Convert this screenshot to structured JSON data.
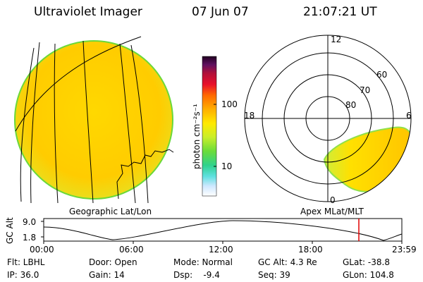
{
  "header": {
    "instrument": "Ultraviolet Imager",
    "date": "07 Jun 07",
    "time": "21:07:21 UT"
  },
  "colorbar": {
    "unit_label": "photon cm⁻²s⁻¹",
    "tick_100": "100",
    "tick_10": "10",
    "colors": [
      "#ffffff",
      "#cfe8ff",
      "#5fe0e0",
      "#2fd28c",
      "#6adc3a",
      "#c8ee2a",
      "#ffea00",
      "#ffb000",
      "#ff6a00",
      "#e8102a",
      "#b0103a",
      "#601060",
      "#200020"
    ]
  },
  "left_panel": {
    "caption": "Geographic Lat/Lon",
    "disk_color": "#ffd400"
  },
  "right_panel": {
    "caption": "Apex MLat/MLT",
    "mlt_12": "12",
    "mlt_18": "18",
    "mlt_6": "6",
    "mlt_0": "0",
    "lat_60": "60",
    "lat_70": "70",
    "lat_80": "80"
  },
  "altitude_strip": {
    "ylabel": "GC Alt",
    "ytick_top": "9.0",
    "ytick_bottom": "1.8",
    "x_ticks": [
      "00:00",
      "06:00",
      "12:00",
      "18:00",
      "23:59"
    ],
    "current_time_marker": "21:07",
    "marker_color": "#e00000"
  },
  "footer": {
    "flt": "Flt: LBHL",
    "ip": "IP: 36.0",
    "door": "Door: Open",
    "gain": "Gain: 14",
    "mode": "Mode: Normal",
    "dsp": "Dsp:    -9.4",
    "gcalt": "GC Alt: 4.3 Re",
    "seq": "Seq: 39",
    "glat": "GLat: -38.8",
    "glon": "GLon: 104.8"
  }
}
